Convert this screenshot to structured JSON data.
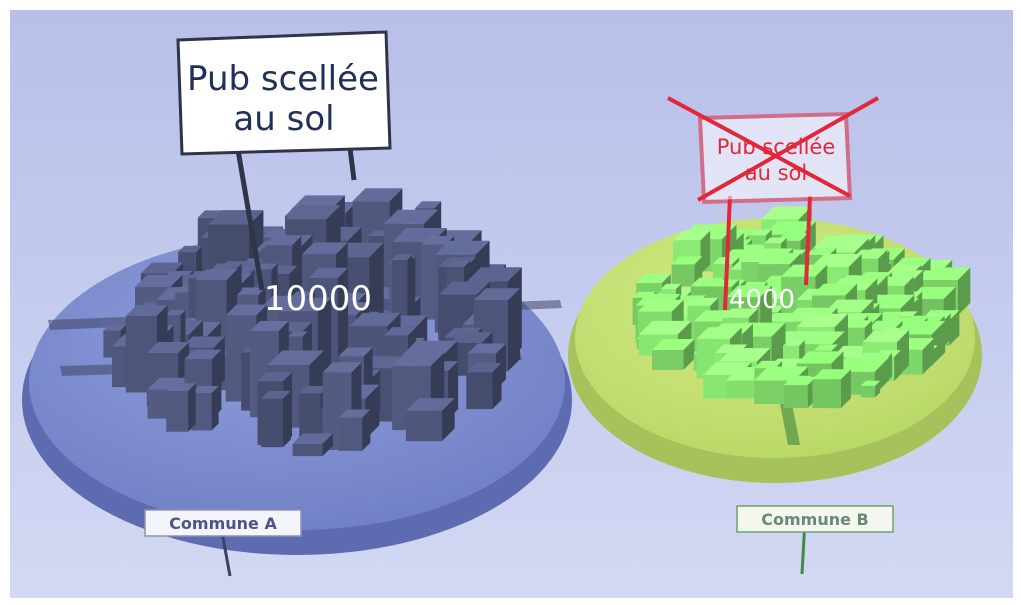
{
  "colors": {
    "background": "#c6ccef",
    "commune_a_disc": "#7f90d2",
    "commune_a_buildings": "#4d5478",
    "commune_b_disc": "#c9e276",
    "commune_b_buildings": "#7fd86a",
    "strike_red": "#e0283a"
  },
  "commune_a": {
    "sign_line1": "Pub scellée",
    "sign_line2": "au sol",
    "count": "10000",
    "label": "Commune A"
  },
  "commune_b": {
    "sign_line1": "Pub scellée",
    "sign_line2": "au sol",
    "count": "4000",
    "label": "Commune B",
    "sign_crossed_out": true
  }
}
